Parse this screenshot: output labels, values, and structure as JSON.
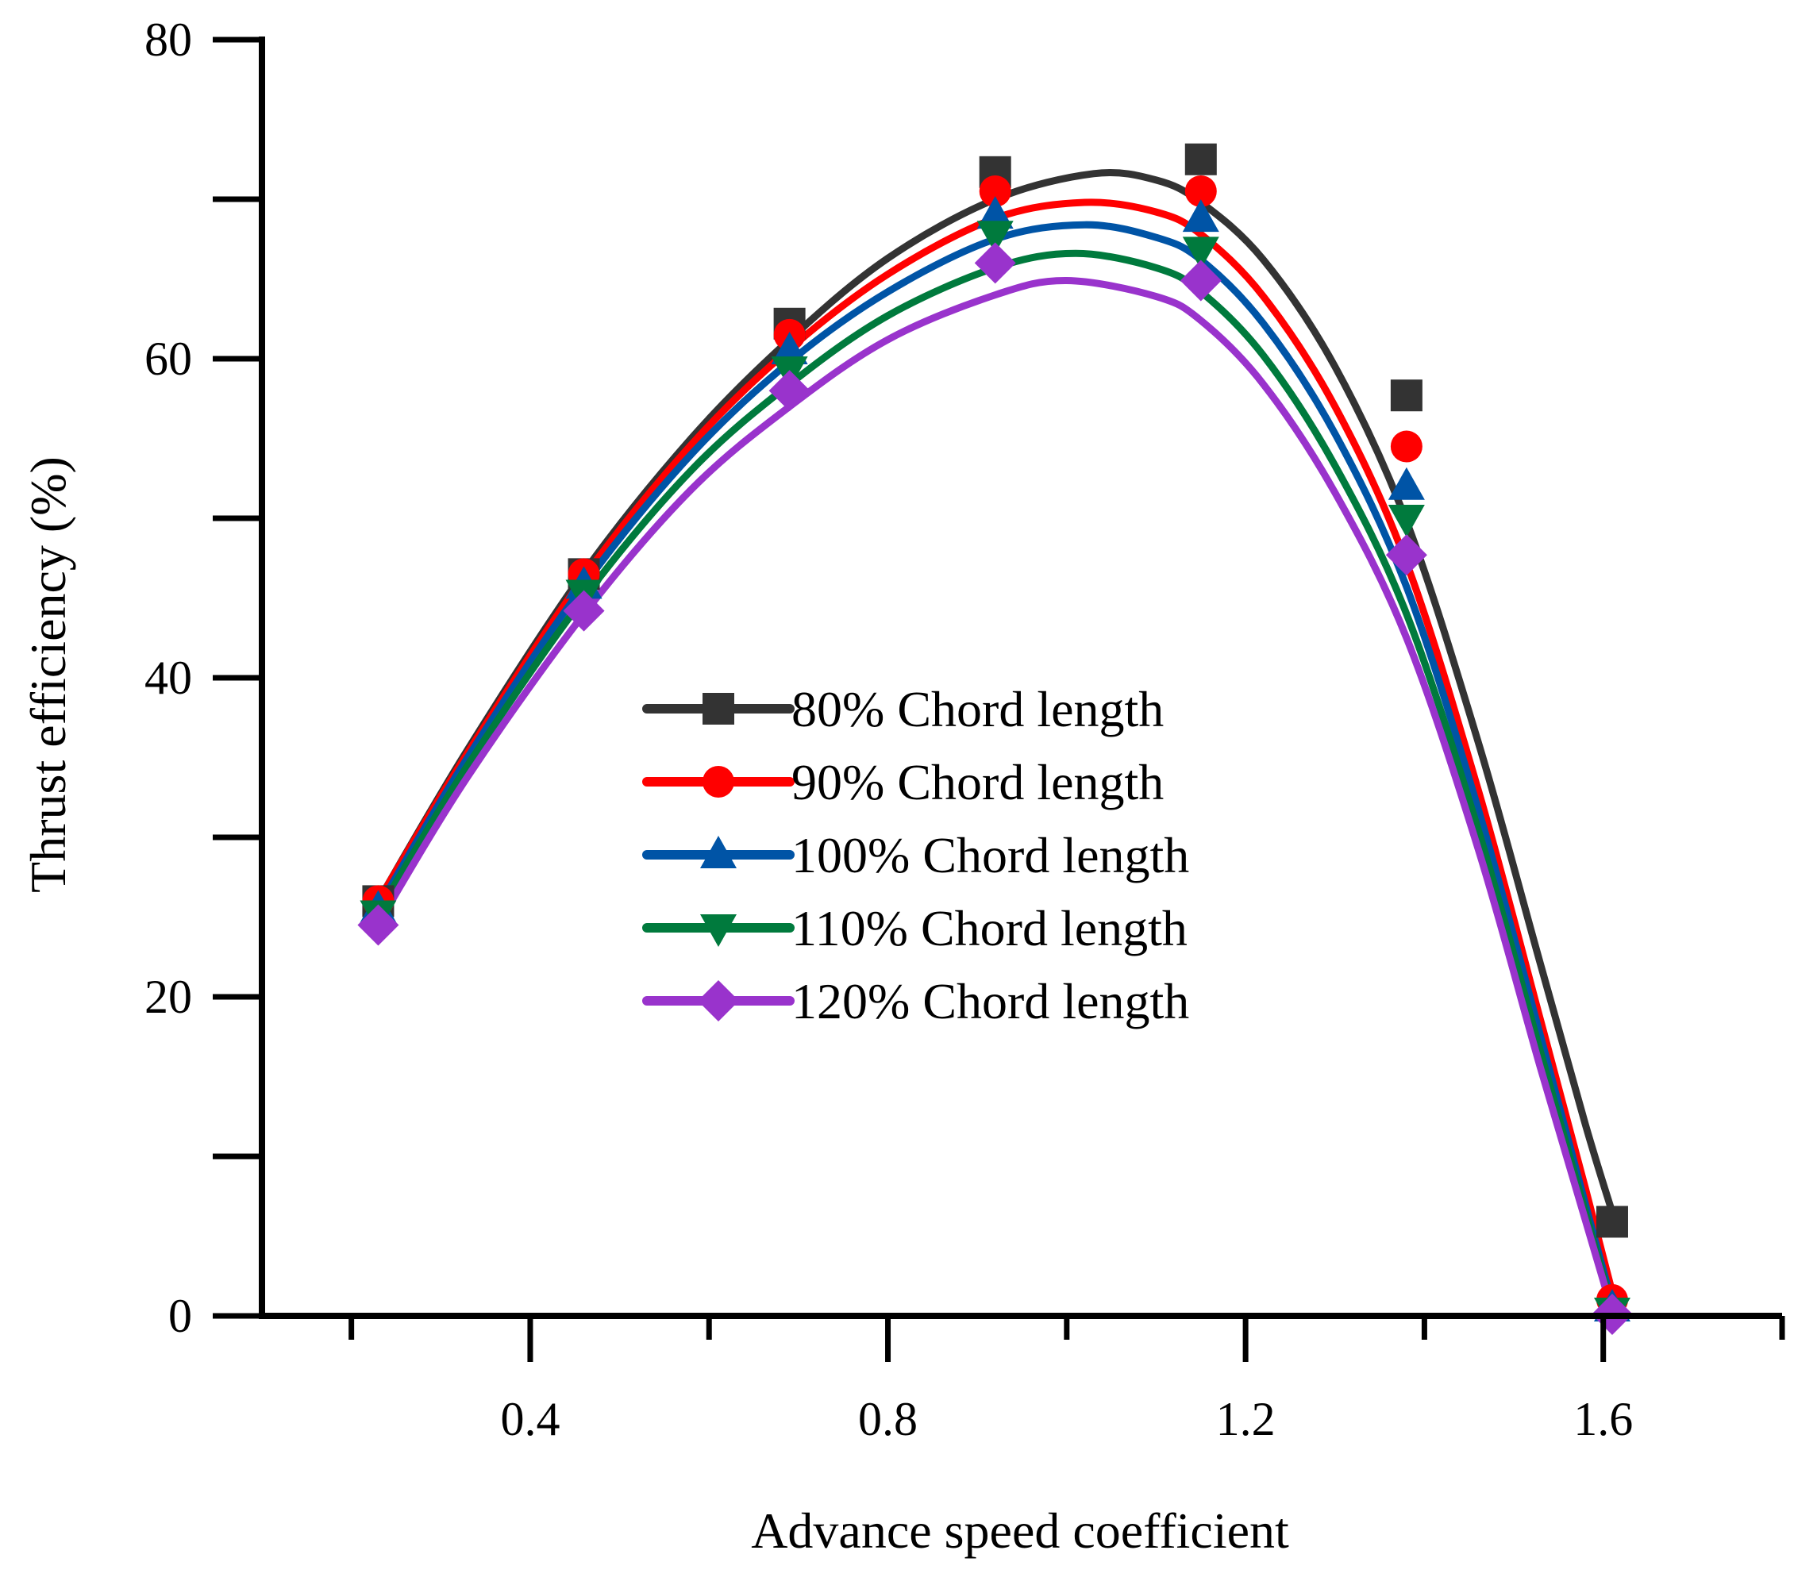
{
  "chart_data": {
    "type": "line",
    "title": "",
    "xlabel": "Advance speed coefficient",
    "ylabel": "Thrust efficiency (%)",
    "xlim": [
      0.1,
      1.8
    ],
    "ylim": [
      0,
      80
    ],
    "x_ticks": [
      0.4,
      0.8,
      1.2,
      1.6
    ],
    "x_tick_labels": [
      "0.4",
      "0.8",
      "1.2",
      "1.6"
    ],
    "y_ticks": [
      0,
      20,
      40,
      60,
      80
    ],
    "y_tick_labels": [
      "0",
      "20",
      "40",
      "60",
      "80"
    ],
    "grid": false,
    "legend_position": "center",
    "x": [
      0.23,
      0.46,
      0.69,
      0.92,
      1.15,
      1.38,
      1.61
    ],
    "series": [
      {
        "name": "80%  Chord length",
        "color": "#333333",
        "marker": "square",
        "values": [
          26.0,
          46.5,
          62.2,
          71.7,
          72.5,
          57.7,
          5.9
        ],
        "curve": [
          [
            0.23,
            26.0
          ],
          [
            0.33,
            35.5
          ],
          [
            0.46,
            46.6
          ],
          [
            0.58,
            55.0
          ],
          [
            0.69,
            61.2
          ],
          [
            0.8,
            66.3
          ],
          [
            0.92,
            70.0
          ],
          [
            1.03,
            71.6
          ],
          [
            1.1,
            71.2
          ],
          [
            1.15,
            69.8
          ],
          [
            1.22,
            66.2
          ],
          [
            1.3,
            59.5
          ],
          [
            1.38,
            49.8
          ],
          [
            1.46,
            36.0
          ],
          [
            1.53,
            22.0
          ],
          [
            1.58,
            12.0
          ],
          [
            1.61,
            6.5
          ]
        ]
      },
      {
        "name": "90%  Chord length",
        "color": "#ff0000",
        "marker": "circle",
        "values": [
          26.0,
          46.5,
          61.5,
          70.5,
          70.5,
          54.5,
          1.0
        ],
        "curve": [
          [
            0.23,
            26.0
          ],
          [
            0.33,
            35.3
          ],
          [
            0.46,
            46.3
          ],
          [
            0.58,
            54.6
          ],
          [
            0.69,
            60.6
          ],
          [
            0.8,
            65.3
          ],
          [
            0.92,
            68.8
          ],
          [
            1.02,
            69.8
          ],
          [
            1.1,
            69.2
          ],
          [
            1.15,
            67.8
          ],
          [
            1.22,
            63.9
          ],
          [
            1.3,
            57.0
          ],
          [
            1.38,
            47.2
          ],
          [
            1.46,
            33.0
          ],
          [
            1.53,
            18.5
          ],
          [
            1.58,
            8.0
          ],
          [
            1.61,
            1.5
          ]
        ]
      },
      {
        "name": "100% Chord length",
        "color": "#0054a6",
        "marker": "triangle-up",
        "values": [
          25.5,
          45.8,
          60.5,
          69.0,
          68.8,
          52.0,
          0.5
        ],
        "curve": [
          [
            0.23,
            25.6
          ],
          [
            0.33,
            35.0
          ],
          [
            0.46,
            45.8
          ],
          [
            0.58,
            54.0
          ],
          [
            0.69,
            59.8
          ],
          [
            0.8,
            64.2
          ],
          [
            0.92,
            67.5
          ],
          [
            1.02,
            68.4
          ],
          [
            1.1,
            67.6
          ],
          [
            1.15,
            66.2
          ],
          [
            1.22,
            62.2
          ],
          [
            1.3,
            55.3
          ],
          [
            1.38,
            45.7
          ],
          [
            1.46,
            31.8
          ],
          [
            1.53,
            17.5
          ],
          [
            1.58,
            7.0
          ],
          [
            1.61,
            0.8
          ]
        ]
      },
      {
        "name": "110% Chord length",
        "color": "#007a3d",
        "marker": "triangle-down",
        "values": [
          25.2,
          45.3,
          59.3,
          67.8,
          66.8,
          50.0,
          0.3
        ],
        "curve": [
          [
            0.23,
            25.3
          ],
          [
            0.33,
            34.5
          ],
          [
            0.46,
            45.0
          ],
          [
            0.58,
            53.0
          ],
          [
            0.69,
            58.4
          ],
          [
            0.8,
            62.7
          ],
          [
            0.92,
            65.7
          ],
          [
            1.01,
            66.6
          ],
          [
            1.1,
            65.7
          ],
          [
            1.15,
            64.2
          ],
          [
            1.22,
            60.2
          ],
          [
            1.3,
            53.3
          ],
          [
            1.38,
            44.0
          ],
          [
            1.46,
            30.5
          ],
          [
            1.53,
            16.5
          ],
          [
            1.58,
            6.5
          ],
          [
            1.61,
            0.5
          ]
        ]
      },
      {
        "name": "120% Chord length",
        "color": "#9933cc",
        "marker": "diamond",
        "values": [
          24.5,
          44.2,
          58.0,
          66.0,
          64.9,
          47.7,
          0.1
        ],
        "curve": [
          [
            0.23,
            24.6
          ],
          [
            0.33,
            33.8
          ],
          [
            0.46,
            44.0
          ],
          [
            0.58,
            51.8
          ],
          [
            0.69,
            57.0
          ],
          [
            0.8,
            61.2
          ],
          [
            0.92,
            64.0
          ],
          [
            1.0,
            64.9
          ],
          [
            1.1,
            63.9
          ],
          [
            1.15,
            62.4
          ],
          [
            1.22,
            58.4
          ],
          [
            1.3,
            51.6
          ],
          [
            1.38,
            42.5
          ],
          [
            1.46,
            29.3
          ],
          [
            1.53,
            15.5
          ],
          [
            1.58,
            6.0
          ],
          [
            1.61,
            0.3
          ]
        ]
      }
    ]
  }
}
